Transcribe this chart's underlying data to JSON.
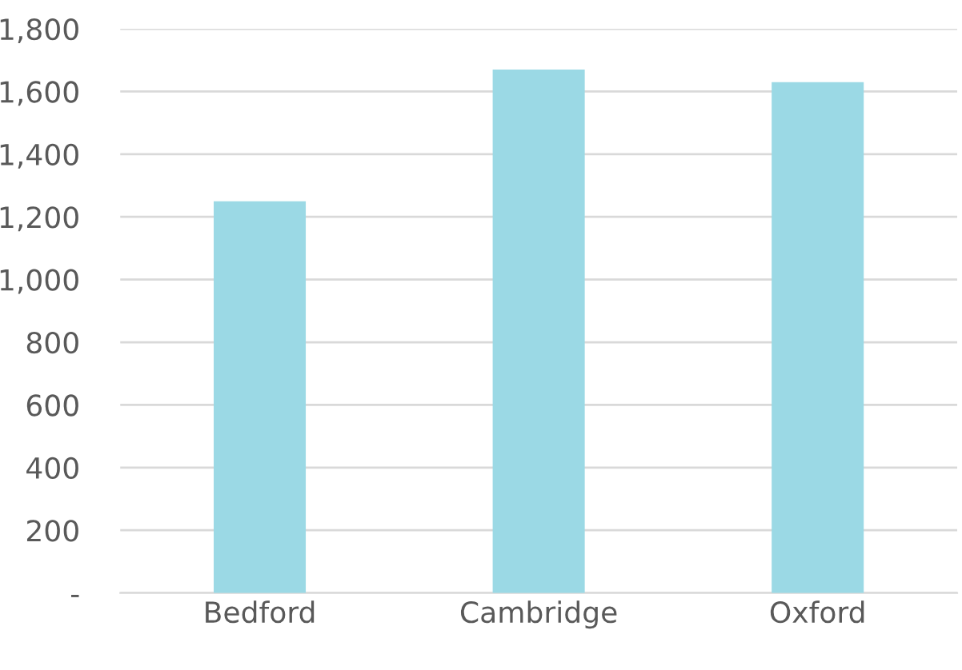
{
  "chart_data": {
    "type": "bar",
    "categories": [
      "Bedford",
      "Cambridge",
      "Oxford"
    ],
    "values": [
      1250,
      1670,
      1630
    ],
    "color": "#9bd9e5",
    "ylim": [
      0,
      1800
    ],
    "yticks": [
      {
        "value": 0,
        "label": "-"
      },
      {
        "value": 200,
        "label": "200"
      },
      {
        "value": 400,
        "label": "400"
      },
      {
        "value": 600,
        "label": "600"
      },
      {
        "value": 800,
        "label": "800"
      },
      {
        "value": 1000,
        "label": "1,000"
      },
      {
        "value": 1200,
        "label": "1,200"
      },
      {
        "value": 1400,
        "label": "1,400"
      },
      {
        "value": 1600,
        "label": "1,600"
      },
      {
        "value": 1800,
        "label": "1,800"
      }
    ],
    "grid": "y"
  }
}
